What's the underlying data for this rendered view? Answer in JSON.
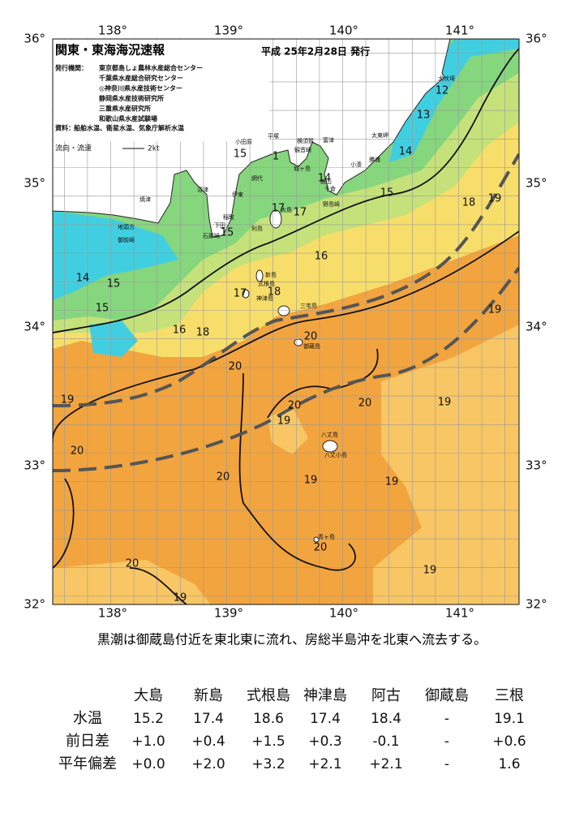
{
  "header": {
    "title": "関東・東海海況速報",
    "issue": "平成 25年2月28日 発行",
    "issuer_label": "発行機関：",
    "issuers": [
      "東京都島しょ農林水産総合センター",
      "千葉県水産総合研究センター",
      "◎神奈川県水産技術センター",
      "静岡県水産技術研究所",
      "三重県水産研究所",
      "和歌山県水産試験場"
    ],
    "source_label": "資料：",
    "source": "船舶水温、衛星水温、気象庁解析水温",
    "legend_label": "流向・流速",
    "legend_speed": "2kt"
  },
  "map": {
    "lon_labels": [
      "138°",
      "139°",
      "140°",
      "141°"
    ],
    "lat_labels": [
      "36°",
      "35°",
      "34°",
      "33°",
      "32°"
    ],
    "isotherm_labels": [
      "12",
      "13",
      "14",
      "15",
      "18",
      "19",
      "15",
      "1",
      "14",
      "17",
      "17",
      "15",
      "16",
      "14",
      "15",
      "15",
      "16",
      "18",
      "18",
      "17",
      "20",
      "20",
      "19",
      "20",
      "19",
      "20",
      "19",
      "20",
      "19",
      "20",
      "19",
      "19",
      "20",
      "20",
      "19",
      "19"
    ],
    "places": [
      "犬吠埼",
      "太東岬",
      "勝浦",
      "小湊",
      "富津",
      "横須賀",
      "観音崎",
      "平塚",
      "小田原",
      "城ヶ島",
      "館山",
      "千倉",
      "野島崎",
      "網代",
      "伊東",
      "沼津",
      "焼津",
      "地頭方",
      "御前崎",
      "稲取",
      "下田",
      "石廊崎",
      "大島",
      "利島",
      "新島",
      "式根島",
      "神津島",
      "三宅島",
      "御蔵島",
      "八丈島",
      "八丈小島",
      "青ヶ島"
    ]
  },
  "note": "黒潮は御蔵島付近を東北東に流れ、房総半島沖を北東へ流去する。",
  "table": {
    "columns": [
      "大島",
      "新島",
      "式根島",
      "神津島",
      "阿古",
      "御蔵島",
      "三根"
    ],
    "rows": [
      {
        "label": "水温",
        "cells": [
          "15.2",
          "17.4",
          "18.6",
          "17.4",
          "18.4",
          "-",
          "19.1"
        ]
      },
      {
        "label": "前日差",
        "cells": [
          "+1.0",
          "+0.4",
          "+1.5",
          "+0.3",
          "-0.1",
          "-",
          "+0.6"
        ]
      },
      {
        "label": "平年偏差",
        "cells": [
          "+0.0",
          "+2.0",
          "+3.2",
          "+2.1",
          "+2.1",
          "-",
          "1.6"
        ]
      }
    ]
  }
}
